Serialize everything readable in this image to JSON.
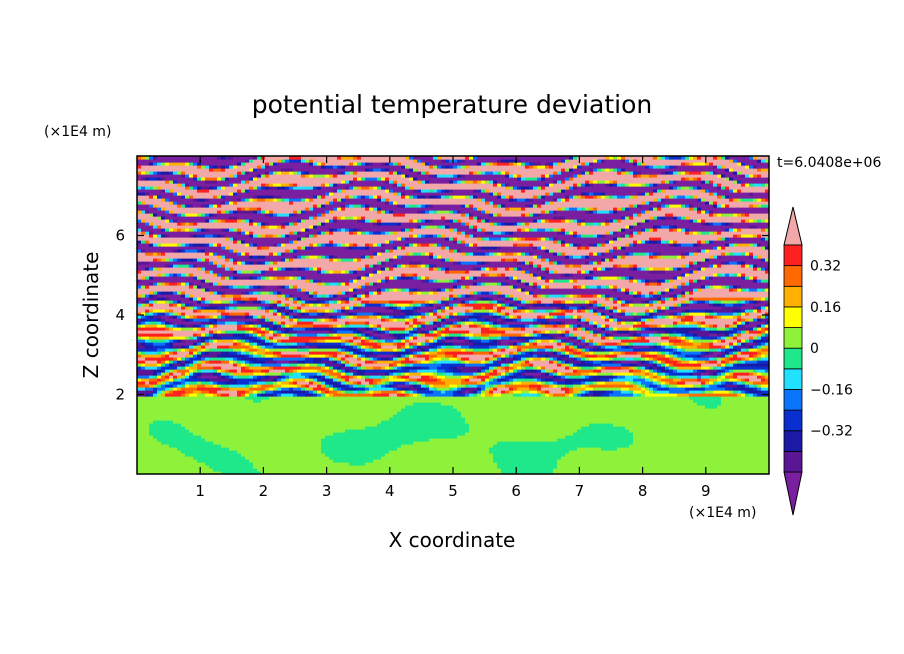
{
  "chart_data": {
    "type": "heatmap",
    "title": "potential temperature deviation",
    "xlabel": "X coordinate",
    "ylabel": "Z coordinate",
    "x_unit": "(×1E4 m)",
    "y_unit": "(×1E4 m)",
    "time_label": "t=6.0408e+06",
    "xlim": [
      0,
      10
    ],
    "ylim": [
      0,
      8
    ],
    "x_ticks": [
      "1",
      "2",
      "3",
      "4",
      "5",
      "6",
      "7",
      "8",
      "9"
    ],
    "y_ticks": [
      "2",
      "4",
      "6"
    ],
    "colorbar": {
      "levels": [
        -0.48,
        -0.4,
        -0.32,
        -0.24,
        -0.16,
        -0.08,
        0,
        0.08,
        0.16,
        0.24,
        0.32,
        0.4,
        0.48
      ],
      "colors": [
        "#7a1fa0",
        "#5b1696",
        "#1a1aa6",
        "#0a2fd0",
        "#0a74ff",
        "#22e0ff",
        "#1ee88a",
        "#8ef23a",
        "#ffff00",
        "#ffb000",
        "#ff6a00",
        "#ff2020",
        "#f2a8a8"
      ],
      "tick_labels": [
        "0.32",
        "0.16",
        "0",
        "-0.16",
        "-0.32"
      ]
    }
  }
}
